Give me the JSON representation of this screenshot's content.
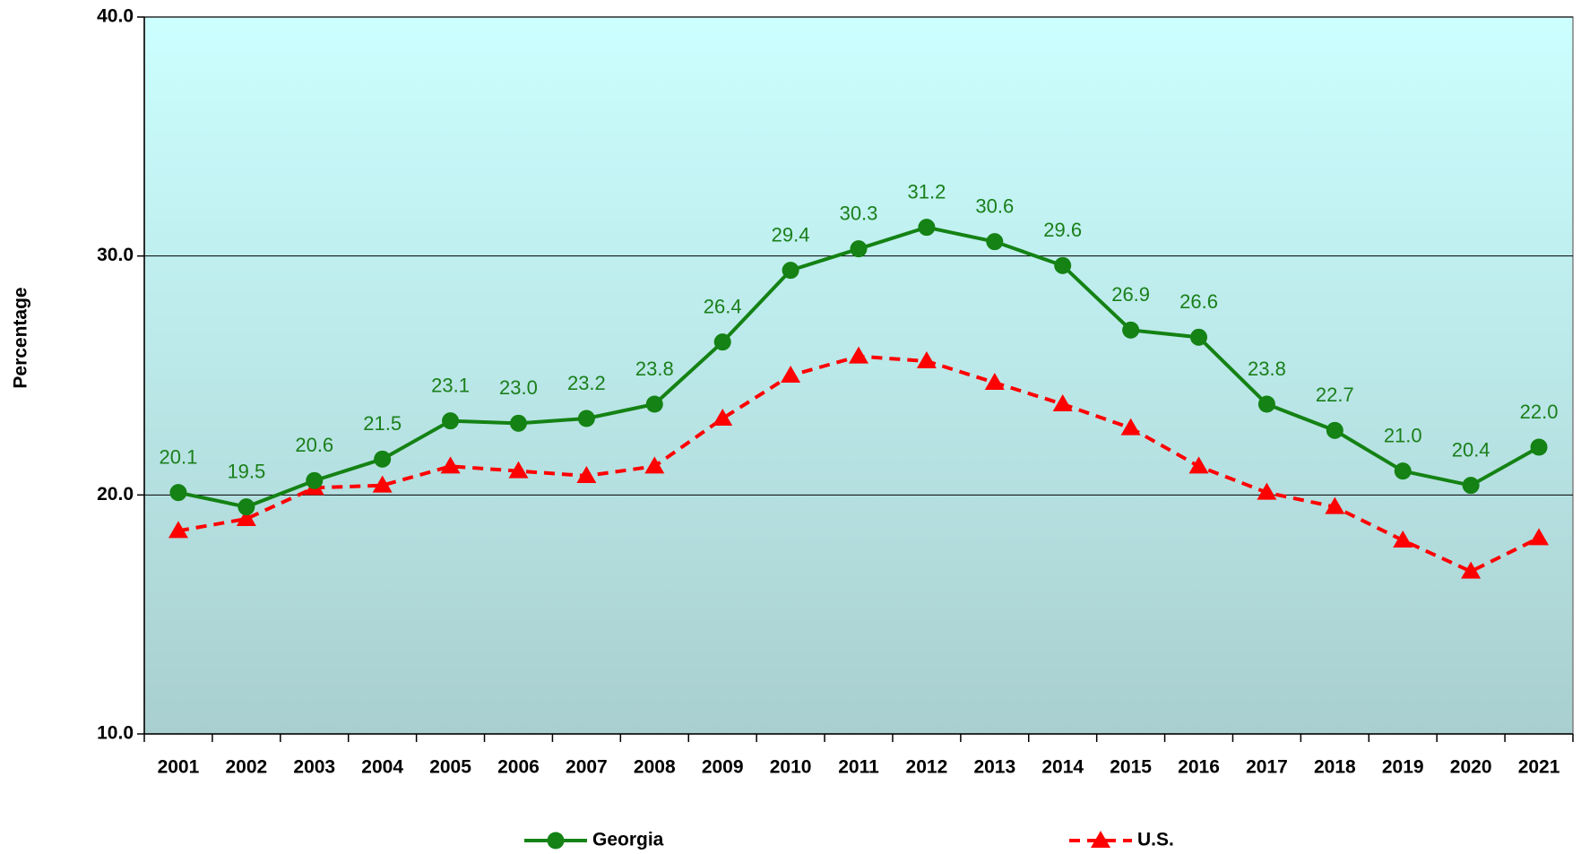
{
  "chart_data": {
    "type": "line",
    "y_label": "Percentage",
    "categories": [
      "2001",
      "2002",
      "2003",
      "2004",
      "2005",
      "2006",
      "2007",
      "2008",
      "2009",
      "2010",
      "2011",
      "2012",
      "2013",
      "2014",
      "2015",
      "2016",
      "2017",
      "2018",
      "2019",
      "2020",
      "2021"
    ],
    "series": [
      {
        "name": "Georgia",
        "color": "#148214",
        "marker": "circle",
        "dash": false,
        "values": [
          20.1,
          19.5,
          20.6,
          21.5,
          23.1,
          23.0,
          23.2,
          23.8,
          26.4,
          29.4,
          30.3,
          31.2,
          30.6,
          29.6,
          26.9,
          26.6,
          23.8,
          22.7,
          21.0,
          20.4,
          22.0
        ],
        "value_labels": [
          "20.1",
          "19.5",
          "20.6",
          "21.5",
          "23.1",
          "23.0",
          "23.2",
          "23.8",
          "26.4",
          "29.4",
          "30.3",
          "31.2",
          "30.6",
          "29.6",
          "26.9",
          "26.6",
          "23.8",
          "22.7",
          "21.0",
          "20.4",
          "22.0"
        ]
      },
      {
        "name": "U.S.",
        "color": "#ff0000",
        "marker": "triangle",
        "dash": true,
        "values": [
          18.5,
          19.0,
          20.3,
          20.4,
          21.2,
          21.0,
          20.8,
          21.2,
          23.2,
          25.0,
          25.8,
          25.6,
          24.7,
          23.8,
          22.8,
          21.2,
          20.1,
          19.5,
          18.1,
          16.8,
          18.2
        ]
      }
    ],
    "ylim": [
      10,
      40
    ],
    "yticks": [
      {
        "value": 10,
        "label": "10.0"
      },
      {
        "value": 20,
        "label": "20.0"
      },
      {
        "value": 30,
        "label": "30.0"
      },
      {
        "value": 40,
        "label": "40.0"
      }
    ],
    "grid": true,
    "legend": "bottom"
  }
}
